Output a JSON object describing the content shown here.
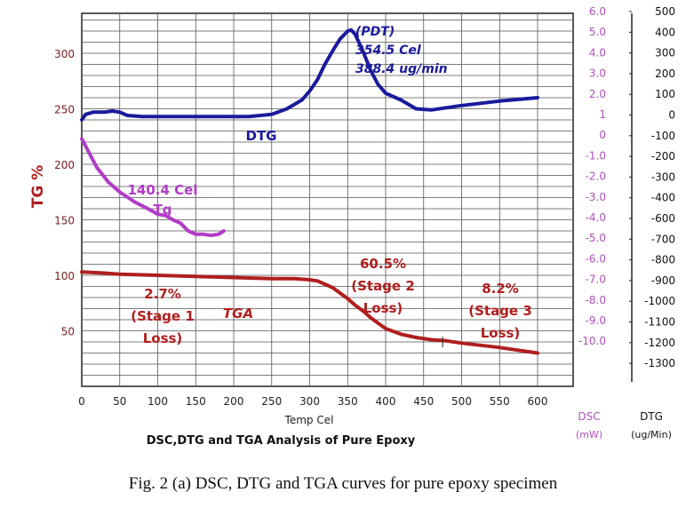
{
  "chart_data": {
    "type": "line",
    "title": "DSC,DTG and TGA  Analysis of Pure Epoxy",
    "xlabel": "Temp Cel",
    "ylabel": "TG %",
    "xlim": [
      0,
      600
    ],
    "x_ticks": [
      0,
      50,
      100,
      150,
      200,
      250,
      300,
      350,
      400,
      450,
      500,
      550,
      600
    ],
    "ylim": [
      0,
      340
    ],
    "y_ticks": [
      50,
      100,
      150,
      200,
      250,
      300
    ],
    "grid": true,
    "right_axes": [
      {
        "name": "DSC",
        "label_line1": "DSC",
        "label_line2": "(mW)",
        "color": "#b050c0",
        "ticks": [
          "6.0",
          "5.0",
          "4.0",
          "3.0",
          "2.0",
          "1",
          "0",
          "-1.0",
          "-2.0",
          "-3.0",
          "-4.0",
          "-5.0",
          "-6.0",
          "-7.0",
          "-8.0",
          "-9.0",
          "-10.0"
        ]
      },
      {
        "name": "DTG",
        "label_line1": "DTG",
        "label_line2": "(ug/Min)",
        "color": "#111111",
        "ticks": [
          "500",
          "400",
          "300",
          "200",
          "100",
          "0",
          "-100",
          "-200",
          "-300",
          "-400",
          "-600",
          "-700",
          "-800",
          "-900",
          "-1000",
          "-1100",
          "-1200",
          "-1300"
        ]
      }
    ],
    "series": [
      {
        "name": "DTG",
        "color": "#1a1a9c",
        "x": [
          0,
          5,
          15,
          30,
          40,
          50,
          60,
          80,
          100,
          150,
          200,
          220,
          250,
          270,
          290,
          300,
          310,
          320,
          330,
          340,
          350,
          354.5,
          360,
          370,
          380,
          390,
          400,
          420,
          440,
          460,
          480,
          500,
          550,
          600
        ],
        "y": [
          240,
          245,
          247,
          247,
          248,
          247,
          244,
          243,
          243,
          243,
          243,
          243,
          245,
          250,
          258,
          266,
          276,
          290,
          302,
          313,
          320,
          321,
          317,
          302,
          285,
          272,
          264,
          258,
          250,
          249,
          251,
          253,
          257,
          260
        ]
      },
      {
        "name": "DSC",
        "color": "#b23cc8",
        "x": [
          0,
          10,
          20,
          35,
          50,
          70,
          90,
          100,
          110,
          120,
          130,
          140,
          150,
          160,
          170,
          180,
          187
        ],
        "y": [
          223,
          210,
          197,
          184,
          175,
          166,
          159,
          155,
          154,
          150,
          147,
          140,
          137,
          137,
          136,
          137,
          140
        ]
      },
      {
        "name": "TGA",
        "color": "#b01e1e",
        "x": [
          0,
          30,
          50,
          100,
          150,
          200,
          250,
          280,
          300,
          310,
          320,
          330,
          340,
          350,
          360,
          370,
          380,
          390,
          400,
          420,
          440,
          460,
          480,
          500,
          550,
          600
        ],
        "y": [
          103,
          102,
          101,
          100,
          99,
          98,
          97,
          97,
          96,
          95,
          92,
          89,
          84,
          79,
          73,
          68,
          62,
          57,
          52,
          47,
          44,
          42,
          41,
          39,
          35,
          30
        ]
      }
    ],
    "annotations": [
      {
        "id": "pdt",
        "lines": [
          "(PDT)",
          "354.5 Cel",
          "388.4 ug/min"
        ],
        "color": "#1a1a9c"
      },
      {
        "id": "dtg-label",
        "lines": [
          "DTG"
        ],
        "color": "#1a1a9c"
      },
      {
        "id": "tg",
        "lines": [
          "140.4 Cel",
          "Tg"
        ],
        "color": "#b23cc8"
      },
      {
        "id": "tga-label",
        "lines": [
          "TGA"
        ],
        "color": "#b01e1e"
      },
      {
        "id": "stage1",
        "lines": [
          "2.7%",
          "(Stage 1",
          "Loss)"
        ],
        "color": "#b01e1e"
      },
      {
        "id": "stage2",
        "lines": [
          "60.5%",
          "(Stage 2",
          "Loss)"
        ],
        "color": "#b01e1e"
      },
      {
        "id": "stage3",
        "lines": [
          "8.2%",
          "(Stage 3",
          "Loss)"
        ],
        "color": "#b01e1e"
      }
    ]
  },
  "caption": "Fig. 2 (a) DSC, DTG and TGA curves for pure epoxy specimen"
}
